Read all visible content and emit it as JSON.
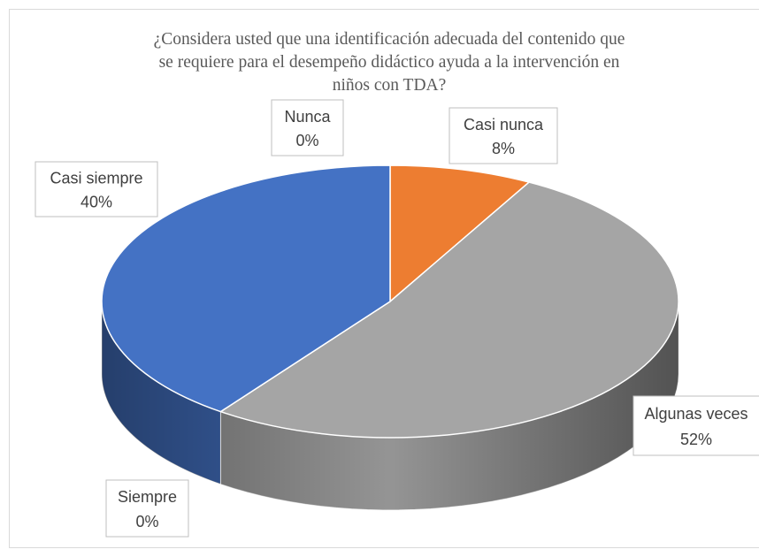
{
  "chart_data": {
    "type": "pie3d",
    "title": "¿Considera usted que una identificación adecuada del contenido que se requiere para el desempeño didáctico ayuda a la intervención en niños con TDA?",
    "categories": [
      "Nunca",
      "Casi nunca",
      "Algunas veces",
      "Siempre",
      "Casi siempre"
    ],
    "values": [
      0,
      8,
      52,
      0,
      40
    ],
    "value_labels": [
      "0%",
      "8%",
      "52%",
      "0%",
      "40%"
    ],
    "colors": [
      "#ffc000",
      "#ed7d31",
      "#a5a5a5",
      "#5b9bd5",
      "#4472c4"
    ]
  }
}
